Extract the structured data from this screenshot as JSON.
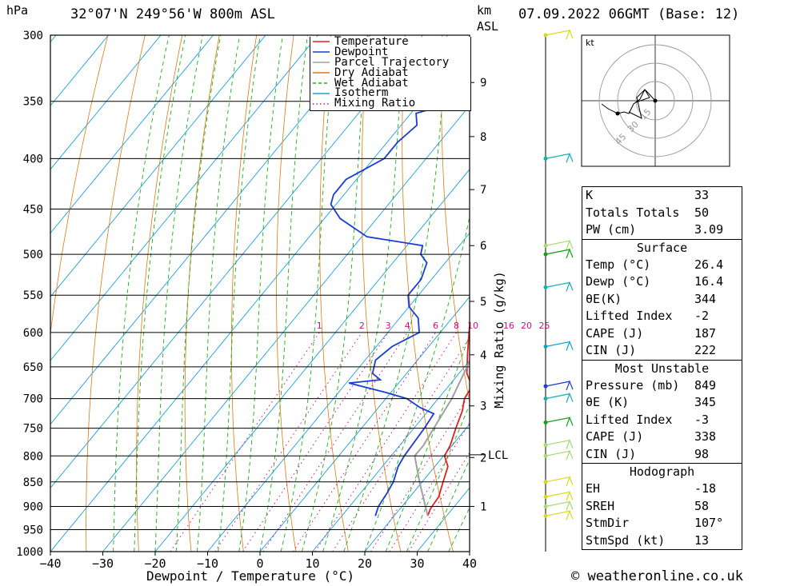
{
  "header": {
    "hpa_unit": "hPa",
    "location": "32°07'N  249°56'W  800m  ASL",
    "km_unit": "km",
    "asl_unit": "ASL",
    "datetime": "07.09.2022  06GMT  (Base: 12)"
  },
  "colors": {
    "temperature": "#e02020",
    "dewpoint": "#1a3cd6",
    "parcel": "#a0a0a0",
    "dry_adiabat": "#e07810",
    "wet_adiabat": "#19b019",
    "isotherm": "#1aa0e0",
    "mixing_ratio": "#d01080"
  },
  "chart_data": {
    "type": "line",
    "xlabel": "Dewpoint / Temperature (°C)",
    "ylabel_right": "Mixing Ratio (g/kg)",
    "xlim": [
      -40,
      40
    ],
    "ylim": [
      1000,
      300
    ],
    "x_ticks": [
      -40,
      -30,
      -20,
      -10,
      0,
      10,
      20,
      30,
      40
    ],
    "pressure_ticks": [
      300,
      350,
      400,
      450,
      500,
      550,
      600,
      650,
      700,
      750,
      800,
      850,
      900,
      950,
      1000
    ],
    "height_ticks_km": [
      {
        "label": "1",
        "p": 900
      },
      {
        "label": "2",
        "p": 803
      },
      {
        "label": "3",
        "p": 712
      },
      {
        "label": "4",
        "p": 632
      },
      {
        "label": "5",
        "p": 558
      },
      {
        "label": "6",
        "p": 490
      },
      {
        "label": "7",
        "p": 430
      },
      {
        "label": "8",
        "p": 380
      },
      {
        "label": "9",
        "p": 335
      }
    ],
    "lcl": {
      "label": "LCL",
      "p": 798
    },
    "mixing_ratio_labels": [
      "1",
      "2",
      "3",
      "4",
      "6",
      "8",
      "10",
      "16",
      "20",
      "25"
    ],
    "legend": [
      "Temperature",
      "Dewpoint",
      "Parcel Trajectory",
      "Dry Adiabat",
      "Wet Adiabat",
      "Isotherm",
      "Mixing Ratio"
    ],
    "series": [
      {
        "name": "Temperature",
        "points": [
          [
            920,
            26.4
          ],
          [
            905,
            25.8
          ],
          [
            880,
            25.5
          ],
          [
            850,
            24
          ],
          [
            820,
            22.5
          ],
          [
            800,
            20.2
          ],
          [
            780,
            19.6
          ],
          [
            750,
            18
          ],
          [
            720,
            16.5
          ],
          [
            700,
            15
          ],
          [
            680,
            14.5
          ],
          [
            660,
            11.5
          ],
          [
            630,
            8.5
          ],
          [
            600,
            5.5
          ],
          [
            580,
            3.5
          ],
          [
            560,
            2.5
          ],
          [
            540,
            0
          ],
          [
            520,
            -2
          ],
          [
            500,
            -3.5
          ],
          [
            490,
            -3
          ],
          [
            480,
            -4.5
          ],
          [
            460,
            -6.5
          ],
          [
            440,
            -9.5
          ],
          [
            420,
            -12
          ],
          [
            400,
            -14.5
          ],
          [
            380,
            -17.5
          ],
          [
            360,
            -20.5
          ],
          [
            350,
            -22.5
          ],
          [
            340,
            -24.5
          ],
          [
            330,
            -25.5
          ],
          [
            320,
            -27
          ],
          [
            310,
            -29
          ],
          [
            300,
            -30.5
          ]
        ]
      },
      {
        "name": "Dewpoint",
        "points": [
          [
            920,
            16.4
          ],
          [
            900,
            15.5
          ],
          [
            870,
            15
          ],
          [
            850,
            14.5
          ],
          [
            820,
            13
          ],
          [
            800,
            12.5
          ],
          [
            750,
            12
          ],
          [
            725,
            11.5
          ],
          [
            715,
            8
          ],
          [
            700,
            4
          ],
          [
            690,
            -1
          ],
          [
            675,
            -9.5
          ],
          [
            670,
            -4
          ],
          [
            660,
            -6.5
          ],
          [
            640,
            -8
          ],
          [
            620,
            -7
          ],
          [
            600,
            -4
          ],
          [
            580,
            -6.5
          ],
          [
            565,
            -10
          ],
          [
            550,
            -12
          ],
          [
            530,
            -12
          ],
          [
            510,
            -13.5
          ],
          [
            500,
            -16
          ],
          [
            490,
            -17
          ],
          [
            480,
            -29
          ],
          [
            460,
            -37
          ],
          [
            445,
            -41
          ],
          [
            435,
            -42
          ],
          [
            420,
            -42
          ],
          [
            400,
            -38
          ],
          [
            385,
            -38
          ],
          [
            370,
            -37
          ],
          [
            360,
            -39
          ],
          [
            355,
            -36
          ],
          [
            350,
            -32
          ],
          [
            345,
            -32
          ],
          [
            340,
            -36
          ],
          [
            335,
            -36
          ],
          [
            330,
            -48
          ],
          [
            325,
            -36
          ],
          [
            320,
            -33
          ],
          [
            315,
            -35
          ],
          [
            310,
            -33
          ],
          [
            305,
            -34
          ],
          [
            300,
            -35
          ]
        ]
      },
      {
        "name": "Parcel Trajectory",
        "points": [
          [
            920,
            26.4
          ],
          [
            850,
            19.5
          ],
          [
            800,
            14.5
          ],
          [
            780,
            14.5
          ],
          [
            750,
            13.8
          ],
          [
            700,
            12.6
          ],
          [
            650,
            10.5
          ],
          [
            600,
            7.8
          ],
          [
            550,
            4.5
          ],
          [
            500,
            0.5
          ],
          [
            450,
            -5
          ],
          [
            400,
            -12
          ],
          [
            350,
            -20.5
          ],
          [
            300,
            -29
          ]
        ]
      }
    ]
  },
  "mixing_axis_label": "Mixing Ratio (g/kg)",
  "hodograph": {
    "unit": "kt",
    "ring_labels": [
      "15",
      "30",
      "45"
    ]
  },
  "indices": {
    "rows": [
      {
        "k": "K",
        "v": "33"
      },
      {
        "k": "Totals Totals",
        "v": "50"
      },
      {
        "k": "PW (cm)",
        "v": "3.09"
      }
    ]
  },
  "surface": {
    "title": "Surface",
    "rows": [
      {
        "k": "Temp (°C)",
        "v": "26.4"
      },
      {
        "k": "Dewp (°C)",
        "v": "16.4"
      },
      {
        "k": "θE(K)",
        "v": "344"
      },
      {
        "k": "Lifted Index",
        "v": "-2"
      },
      {
        "k": "CAPE (J)",
        "v": "187"
      },
      {
        "k": "CIN (J)",
        "v": "222"
      }
    ]
  },
  "most_unstable": {
    "title": "Most Unstable",
    "rows": [
      {
        "k": "Pressure (mb)",
        "v": "849"
      },
      {
        "k": "θE (K)",
        "v": "345"
      },
      {
        "k": "Lifted Index",
        "v": "-3"
      },
      {
        "k": "CAPE (J)",
        "v": "338"
      },
      {
        "k": "CIN (J)",
        "v": "98"
      }
    ]
  },
  "hodograph_table": {
    "title": "Hodograph",
    "rows": [
      {
        "k": "EH",
        "v": "-18"
      },
      {
        "k": "SREH",
        "v": "58"
      },
      {
        "k": "StmDir",
        "v": "107°"
      },
      {
        "k": "StmSpd (kt)",
        "v": "13"
      }
    ]
  },
  "copyright": "© weatheronline.co.uk"
}
